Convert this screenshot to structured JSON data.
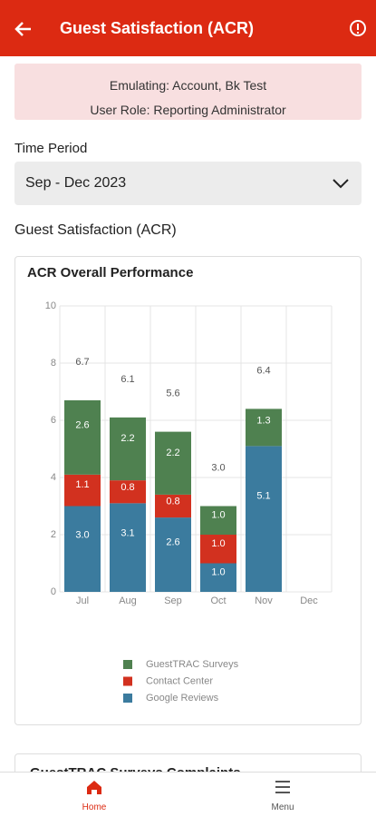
{
  "header": {
    "title": "Guest Satisfaction (ACR)"
  },
  "banner": {
    "lines": [
      "Emulating: Account, Bk Test",
      "User Role: Reporting Administrator"
    ]
  },
  "time_period": {
    "label": "Time Period",
    "value": "Sep - Dec 2023"
  },
  "section_title": "Guest Satisfaction (ACR)",
  "chart_data": {
    "type": "stacked_bar",
    "title": "ACR Overall Performance",
    "categories": [
      "Jul",
      "Aug",
      "Sep",
      "Oct",
      "Nov",
      "Dec"
    ],
    "series": [
      {
        "name": "Google Reviews",
        "color": "#3b7b9e",
        "values": [
          3.0,
          3.1,
          2.6,
          1.0,
          5.1,
          null
        ],
        "value_labels": [
          "3.0",
          "3.1",
          "2.6",
          "1.0",
          "5.1",
          null
        ]
      },
      {
        "name": "Contact Center",
        "color": "#d2311f",
        "values": [
          1.1,
          0.8,
          0.8,
          1.0,
          null,
          null
        ],
        "value_labels": [
          "1.1",
          "0.8",
          "0.8",
          "1.0",
          null,
          null
        ]
      },
      {
        "name": "GuestTRAC Surveys",
        "color": "#4f8150",
        "values": [
          2.6,
          2.2,
          2.2,
          1.0,
          1.3,
          null
        ],
        "value_labels": [
          "2.6",
          "2.2",
          "2.2",
          "1.0",
          "1.3",
          null
        ]
      }
    ],
    "totals": [
      6.7,
      6.1,
      5.6,
      3.0,
      6.4,
      null
    ],
    "total_labels": [
      "6.7",
      "6.1",
      "5.6",
      "3.0",
      "6.4",
      null
    ],
    "ylim": [
      0,
      10
    ],
    "yticks": [
      0,
      2,
      4,
      6,
      8,
      10
    ],
    "grid": true
  },
  "next_card_title": "GuestTRAC Surveys Complaints",
  "nav": [
    {
      "label": "Home"
    },
    {
      "label": "Menu"
    }
  ]
}
